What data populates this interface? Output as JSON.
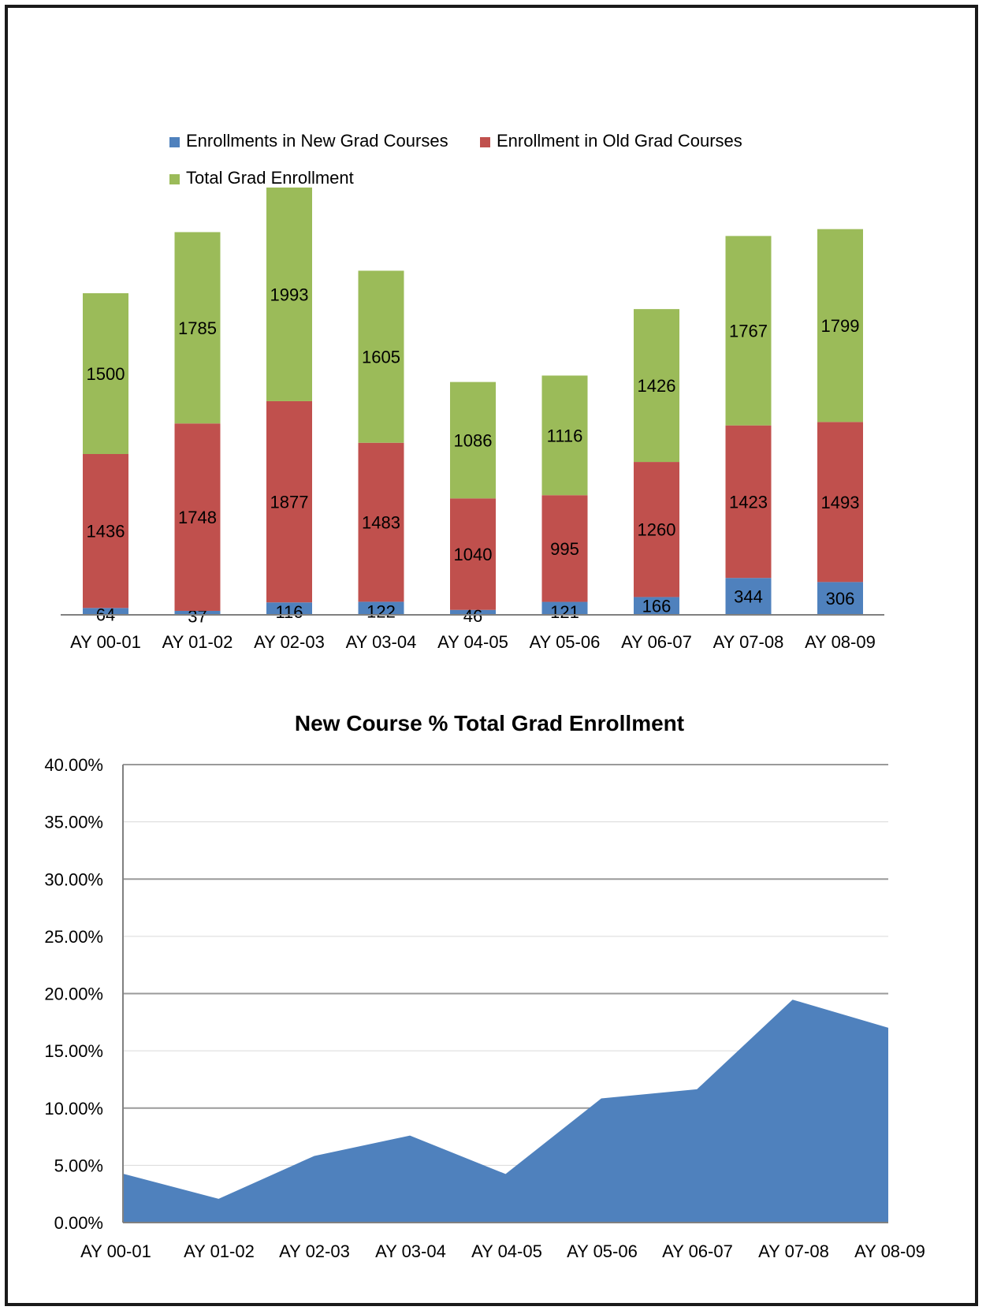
{
  "chart_data": [
    {
      "type": "bar",
      "stacked": true,
      "title": "",
      "categories": [
        "AY 00-01",
        "AY 01-02",
        "AY 02-03",
        "AY 03-04",
        "AY 04-05",
        "AY 05-06",
        "AY 06-07",
        "AY 07-08",
        "AY 08-09"
      ],
      "series": [
        {
          "name": "Enrollments in New Grad Courses",
          "color": "#4f81bd",
          "values": [
            64,
            37,
            116,
            122,
            46,
            121,
            166,
            344,
            306
          ]
        },
        {
          "name": "Enrollment in Old Grad Courses",
          "color": "#c0504d",
          "values": [
            1436,
            1748,
            1877,
            1483,
            1040,
            995,
            1260,
            1423,
            1493
          ]
        },
        {
          "name": "Total Grad Enrollment",
          "color": "#9bbb59",
          "values": [
            1500,
            1785,
            1993,
            1605,
            1086,
            1116,
            1426,
            1767,
            1799
          ]
        }
      ],
      "legend": "top",
      "ylim": [
        0,
        4000
      ],
      "grid": false
    },
    {
      "type": "area",
      "title": "New Course % Total Grad Enrollment",
      "categories": [
        "AY 00-01",
        "AY 01-02",
        "AY 02-03",
        "AY 03-04",
        "AY 04-05",
        "AY 05-06",
        "AY 06-07",
        "AY 07-08",
        "AY 08-09"
      ],
      "series": [
        {
          "color": "#4f81bd",
          "values": [
            4.27,
            2.07,
            5.82,
            7.6,
            4.24,
            10.84,
            11.64,
            19.47,
            17.01
          ]
        }
      ],
      "yticks": [
        "0.00%",
        "5.00%",
        "10.00%",
        "15.00%",
        "20.00%",
        "25.00%",
        "30.00%",
        "35.00%",
        "40.00%"
      ],
      "ylim": [
        0,
        40
      ],
      "grid": true
    }
  ]
}
